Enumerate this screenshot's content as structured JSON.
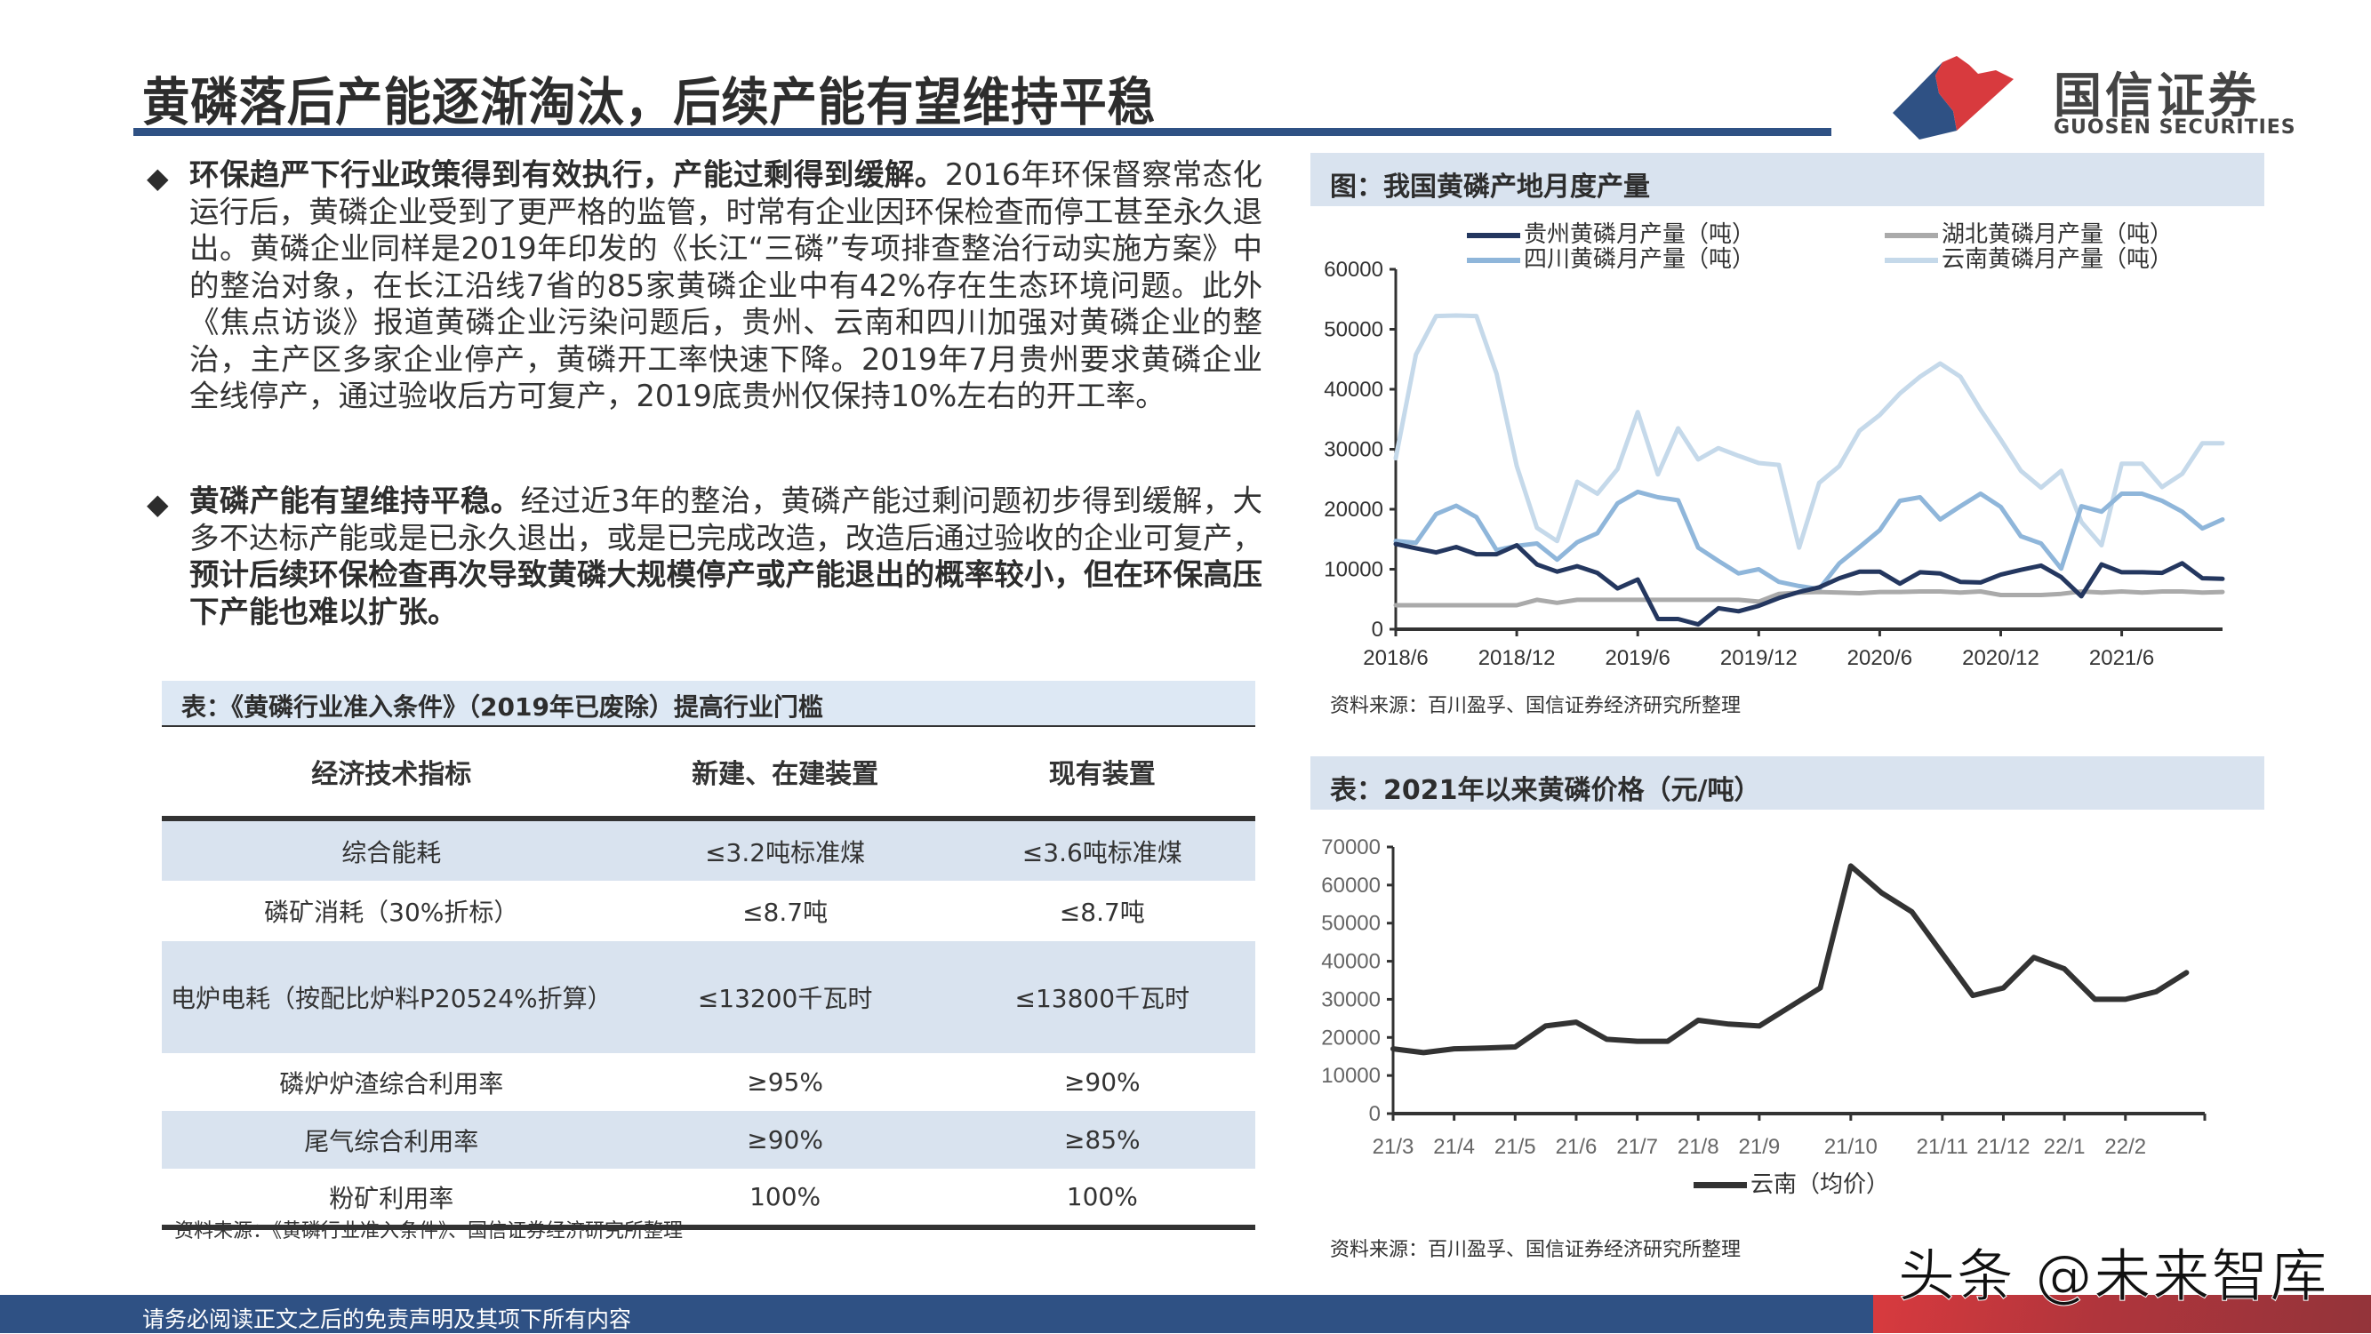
{
  "header": {
    "title": "黄磷落后产能逐渐淘汰，后续产能有望维持平稳",
    "logo_cn": "国信证券",
    "logo_en": "GUOSEN SECURITIES",
    "colors": {
      "brand_blue": "#2f5184",
      "brand_red": "#d83a3e",
      "table_shade": "#d9e3ef"
    }
  },
  "bullets": [
    {
      "bold": "环保趋严下行业政策得到有效执行，产能过剩得到缓解。",
      "text": "2016年环保督察常态化运行后，黄磷企业受到了更严格的监管，时常有企业因环保检查而停工甚至永久退出。黄磷企业同样是2019年印发的《长江“三磷”专项排查整治行动实施方案》中的整治对象，在长江沿线7省的85家黄磷企业中有42%存在生态环境问题。此外《焦点访谈》报道黄磷企业污染问题后，贵州、云南和四川加强对黄磷企业的整治，主产区多家企业停产，黄磷开工率快速下降。2019年7月贵州要求黄磷企业全线停产，通过验收后方可复产，2019底贵州仅保持10%左右的开工率。"
    },
    {
      "bold": "黄磷产能有望维持平稳。",
      "text": "经过近3年的整治，黄磷产能过剩问题初步得到缓解，大多不达标产能或是已永久退出，或是已完成改造，改造后通过验收的企业可复产，",
      "bold2": "预计后续环保检查再次导致黄磷大规模停产或产能退出的概率较小，但在环保高压下产能也难以扩张。"
    }
  ],
  "spec_table": {
    "caption": "表：《黄磷行业准入条件》（2019年已废除）提高行业门槛",
    "headers": [
      "经济技术指标",
      "新建、在建装置",
      "现有装置"
    ],
    "rows": [
      [
        "综合能耗",
        "≤3.2吨标准煤",
        "≤3.6吨标准煤"
      ],
      [
        "磷矿消耗（30%折标）",
        "≤8.7吨",
        "≤8.7吨"
      ],
      [
        "电炉电耗（按配比炉料P20524%折算）",
        "≤13200千瓦时",
        "≤13800千瓦时"
      ],
      [
        "磷炉炉渣综合利用率",
        "≥95%",
        "≥90%"
      ],
      [
        "尾气综合利用率",
        "≥90%",
        "≥85%"
      ],
      [
        "粉矿利用率",
        "100%",
        "100%"
      ]
    ],
    "source": "资料来源：《黄磷行业准入条件》、国信证券经济研究所整理"
  },
  "chart_data": [
    {
      "type": "line",
      "title": "图：我国黄磷产地月度产量",
      "xlabel": "",
      "ylabel": "",
      "ylim": [
        0,
        60000
      ],
      "yticks": [
        0,
        10000,
        20000,
        30000,
        40000,
        50000,
        60000
      ],
      "xtick_labels": [
        "2018/6",
        "2018/12",
        "2019/6",
        "2019/12",
        "2020/6",
        "2020/12",
        "2021/6"
      ],
      "x": [
        "2018/6",
        "2018/7",
        "2018/8",
        "2018/9",
        "2018/10",
        "2018/11",
        "2018/12",
        "2019/1",
        "2019/2",
        "2019/3",
        "2019/4",
        "2019/5",
        "2019/6",
        "2019/7",
        "2019/8",
        "2019/9",
        "2019/10",
        "2019/11",
        "2019/12",
        "2020/1",
        "2020/2",
        "2020/3",
        "2020/4",
        "2020/5",
        "2020/6",
        "2020/7",
        "2020/8",
        "2020/9",
        "2020/10",
        "2020/11",
        "2020/12",
        "2021/1",
        "2021/2",
        "2021/3",
        "2021/4",
        "2021/5",
        "2021/6",
        "2021/7",
        "2021/8",
        "2021/9",
        "2021/10",
        "2021/11"
      ],
      "legend_position": "top",
      "grid": false,
      "series": [
        {
          "name": "贵州黄磷月产量（吨）",
          "color": "#24375f",
          "values": [
            14200,
            13500,
            12800,
            13700,
            12500,
            12500,
            14000,
            10800,
            9600,
            10500,
            9400,
            6800,
            8300,
            1700,
            1700,
            800,
            3500,
            3000,
            3900,
            5200,
            6200,
            7000,
            8500,
            9600,
            9600,
            7600,
            9500,
            9300,
            7900,
            7800,
            9100,
            9900,
            10600,
            8700,
            5500,
            10800,
            9500,
            9500,
            9400,
            11000,
            8500,
            8400
          ]
        },
        {
          "name": "湖北黄磷月产量（吨）",
          "color": "#aaaaaa",
          "values": [
            4000,
            4000,
            4000,
            4000,
            4000,
            4000,
            4000,
            4900,
            4400,
            4900,
            4900,
            4900,
            4900,
            4900,
            4900,
            4900,
            4900,
            4900,
            4600,
            5900,
            6100,
            6200,
            6100,
            6000,
            6200,
            6200,
            6300,
            6300,
            6100,
            6300,
            5700,
            5700,
            5700,
            5900,
            6300,
            6100,
            6300,
            6100,
            6300,
            6300,
            6100,
            6200
          ]
        },
        {
          "name": "四川黄磷月产量（吨）",
          "color": "#8fb6da",
          "values": [
            14700,
            14400,
            19200,
            20600,
            18700,
            13200,
            13900,
            14300,
            11600,
            14500,
            16000,
            21000,
            22900,
            22000,
            21500,
            13600,
            11400,
            9300,
            10000,
            7900,
            7200,
            6700,
            11000,
            13700,
            16500,
            21400,
            22000,
            18300,
            20500,
            22600,
            20400,
            15500,
            14300,
            10100,
            20500,
            19600,
            22600,
            22600,
            21400,
            19600,
            16800,
            18300
          ]
        },
        {
          "name": "云南黄磷月产量（吨）",
          "color": "#c5d9ea",
          "values": [
            28500,
            45800,
            52200,
            52300,
            52200,
            42600,
            27200,
            16900,
            14700,
            24600,
            22600,
            26700,
            36200,
            25800,
            33500,
            28300,
            30200,
            28900,
            27700,
            27400,
            13600,
            24400,
            27200,
            33100,
            35700,
            39300,
            42100,
            44300,
            42100,
            36600,
            31600,
            26400,
            23600,
            26400,
            17900,
            14000,
            27600,
            27600,
            23700,
            25900,
            31000,
            31000
          ]
        }
      ]
    },
    {
      "type": "line",
      "title": "表：2021年以来黄磷价格（元/吨）",
      "xlabel": "",
      "ylabel": "",
      "ylim": [
        0,
        70000
      ],
      "yticks": [
        0,
        10000,
        20000,
        30000,
        40000,
        50000,
        60000,
        70000
      ],
      "xtick_labels": [
        "21/3",
        "21/4",
        "21/5",
        "21/6",
        "21/7",
        "21/8",
        "21/9",
        "21/10",
        "21/11",
        "21/12",
        "22/1",
        "22/2"
      ],
      "legend_position": "bottom",
      "grid": false,
      "x": [
        "21/3",
        "21/3.5",
        "21/4",
        "21/4.5",
        "21/5",
        "21/5.5",
        "21/6",
        "21/6.5",
        "21/7",
        "21/7.5",
        "21/8",
        "21/8.5",
        "21/9",
        "21/9.3",
        "21/9.6",
        "21/10",
        "21/10.3",
        "21/10.6",
        "21/11",
        "21/11.5",
        "21/12",
        "21/12.5",
        "22/1",
        "22/1.5",
        "22/2",
        "22/2.4",
        "22/2.8"
      ],
      "series": [
        {
          "name": "云南（均价）",
          "color": "#333333",
          "values": [
            17000,
            16000,
            17000,
            17200,
            17500,
            23000,
            24000,
            19500,
            19000,
            19000,
            24500,
            23500,
            23000,
            28000,
            33000,
            65000,
            58000,
            53000,
            42000,
            31000,
            33000,
            41000,
            38000,
            30000,
            30000,
            32000,
            37000
          ]
        }
      ]
    }
  ],
  "chart1": {
    "caption": "图：我国黄磷产地月度产量",
    "legend": [
      "贵州黄磷月产量（吨）",
      "湖北黄磷月产量（吨）",
      "四川黄磷月产量（吨）",
      "云南黄磷月产量（吨）"
    ],
    "yticks": [
      "60000",
      "50000",
      "40000",
      "30000",
      "20000",
      "10000",
      "0"
    ],
    "xticks": [
      "2018/6",
      "2018/12",
      "2019/6",
      "2019/12",
      "2020/6",
      "2020/12",
      "2021/6"
    ],
    "source": "资料来源：百川盈孚、国信证券经济研究所整理"
  },
  "chart2": {
    "caption": "表：2021年以来黄磷价格（元/吨）",
    "legend": "云南（均价）",
    "yticks": [
      "70000",
      "60000",
      "50000",
      "40000",
      "30000",
      "20000",
      "10000",
      "0"
    ],
    "xticks": [
      "21/3",
      "21/4",
      "21/5",
      "21/6",
      "21/7",
      "21/8",
      "21/9",
      "21/10",
      "21/11",
      "21/12",
      "22/1",
      "22/2"
    ],
    "source": "资料来源：百川盈孚、国信证券经济研究所整理"
  },
  "footer": {
    "disclaimer": "请务必阅读正文之后的免责声明及其项下所有内容",
    "watermark": "头条 @未来智库"
  }
}
